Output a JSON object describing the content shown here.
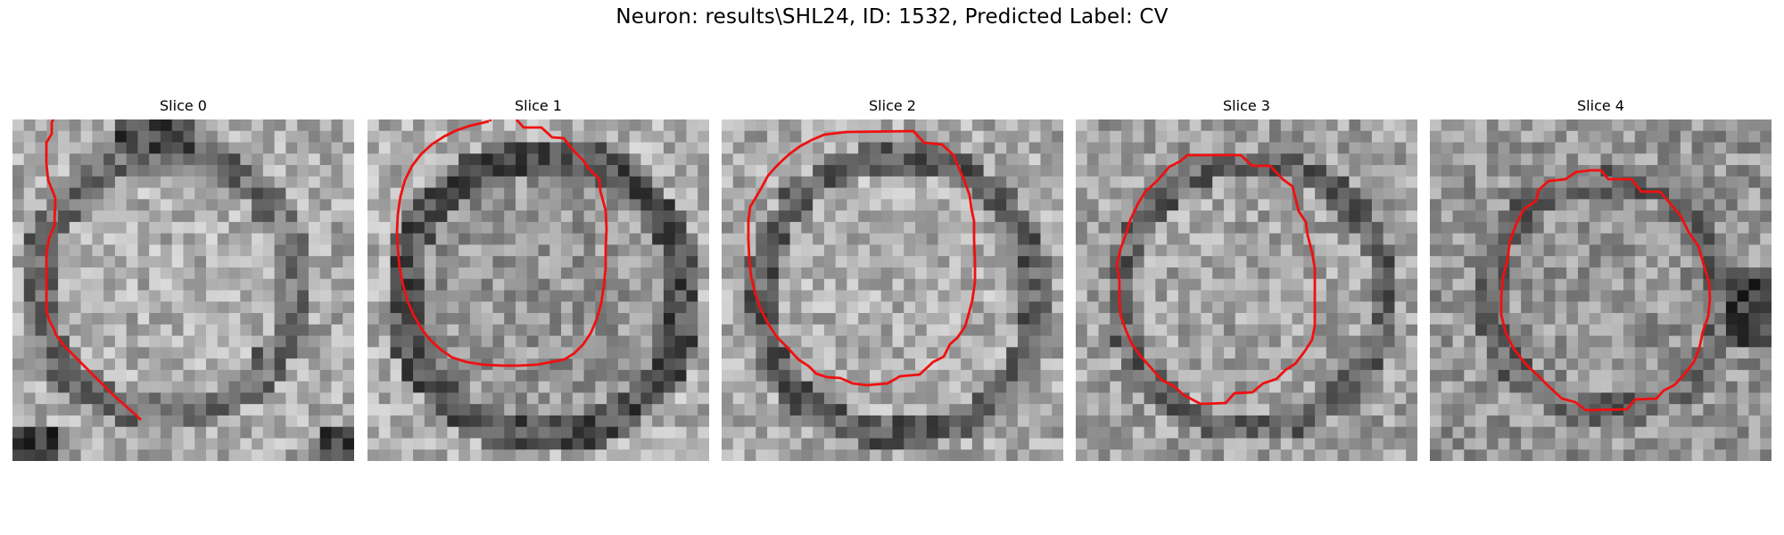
{
  "figure": {
    "title": "Neuron: results\\SHL24, ID: 1532, Predicted Label: CV"
  },
  "overlay_color": "#f01010",
  "slices": [
    {
      "title": "Slice 0",
      "tone": "dark-bottom-corners"
    },
    {
      "title": "Slice 1",
      "tone": "dark-ring"
    },
    {
      "title": "Slice 2",
      "tone": "dark-ring"
    },
    {
      "title": "Slice 3",
      "tone": "dark-ring"
    },
    {
      "title": "Slice 4",
      "tone": "dark-ring"
    }
  ]
}
